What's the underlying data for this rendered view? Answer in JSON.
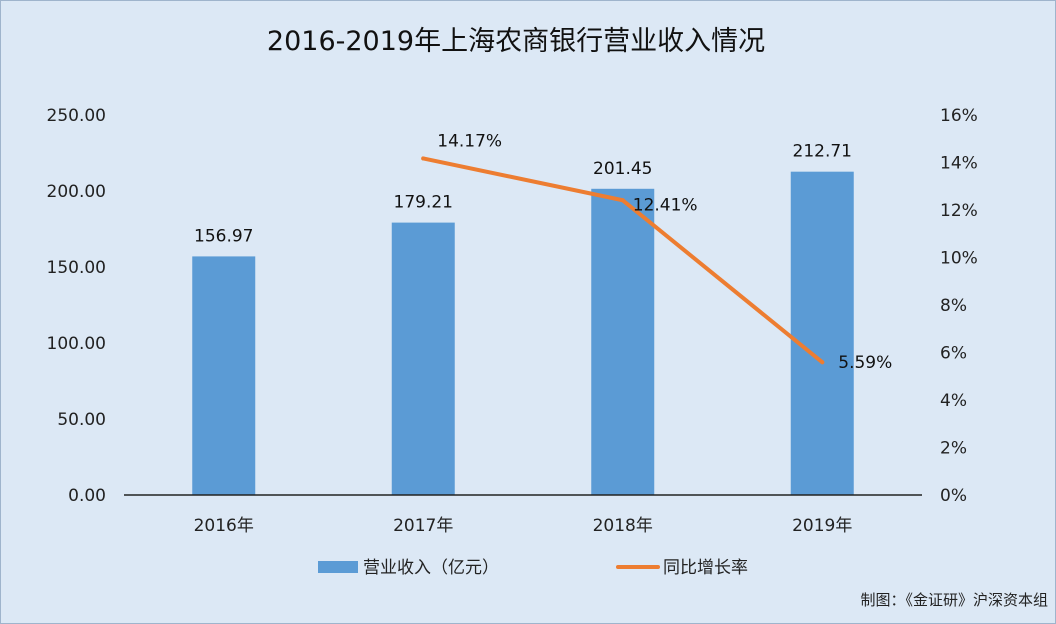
{
  "chart_data": {
    "type": "bar",
    "title": "2016-2019年上海农商银行营业收入情况",
    "categories": [
      "2016年",
      "2017年",
      "2018年",
      "2019年"
    ],
    "series": [
      {
        "name": "营业收入（亿元）",
        "type": "bar",
        "axis": "left",
        "values": [
          156.97,
          179.21,
          201.45,
          212.71
        ],
        "labels": [
          "156.97",
          "179.21",
          "201.45",
          "212.71"
        ],
        "color": "#5b9bd5"
      },
      {
        "name": "同比增长率",
        "type": "line",
        "axis": "right",
        "values": [
          null,
          14.17,
          12.41,
          5.59
        ],
        "labels": [
          "",
          "14.17%",
          "12.41%",
          "5.59%"
        ],
        "color": "#ed7d31"
      }
    ],
    "y_left": {
      "min": 0,
      "max": 250,
      "ticks": [
        "0.00",
        "50.00",
        "100.00",
        "150.00",
        "200.00",
        "250.00"
      ]
    },
    "y_right": {
      "min": 0,
      "max": 16,
      "ticks": [
        "0%",
        "2%",
        "4%",
        "6%",
        "8%",
        "10%",
        "12%",
        "14%",
        "16%"
      ]
    },
    "legend_position": "bottom",
    "grid": false
  },
  "credit": "制图：《金证研》沪深资本组"
}
